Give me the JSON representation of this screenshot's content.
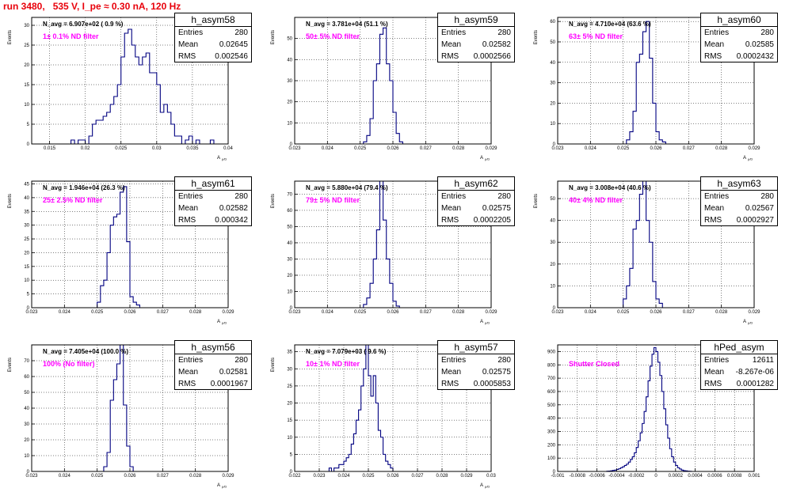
{
  "header": {
    "title": "run 3480,   535 V, I_pe ≈ 0.30 nA, 120 Hz"
  },
  "colors": {
    "hist": "#000080",
    "title": "#e8000b",
    "filter": "#ff00ff",
    "grid": "#000000"
  },
  "chart_data": [
    {
      "type": "bar",
      "name": "h_asym58",
      "navg": "N_avg = 6.907e+02 ( 0.9 %)",
      "filter": "1± 0.1% ND filter",
      "stats": [
        [
          "Entries",
          "280"
        ],
        [
          "Mean",
          "0.02645"
        ],
        [
          "RMS",
          "0.002546"
        ]
      ],
      "xlabel": "A",
      "xlabel_sub": "μ/D",
      "ylabel": "Events",
      "xlim": [
        0.0125,
        0.04
      ],
      "xticks": [
        0.015,
        0.02,
        0.025,
        0.03,
        0.035,
        0.04
      ],
      "xtick_labels": [
        "0.015",
        "0.02",
        "0.025",
        "0.03",
        "0.035",
        "0.04"
      ],
      "ylim": [
        0,
        32
      ],
      "yticks": [
        0,
        5,
        10,
        15,
        20,
        25,
        30
      ],
      "ytick_labels": [
        "0",
        "5",
        "10",
        "15",
        "20",
        "25",
        "30"
      ],
      "bin_start": 0.018,
      "bin_width": 0.0005,
      "values": [
        1,
        0,
        1,
        1,
        0,
        2,
        5,
        6,
        6,
        7,
        8,
        10,
        12,
        15,
        22,
        28,
        29,
        25,
        22,
        20,
        22,
        23,
        18,
        18,
        15,
        8,
        10,
        8,
        5,
        2,
        2,
        0,
        1,
        2,
        0,
        1,
        0,
        0,
        0,
        1
      ]
    },
    {
      "type": "bar",
      "name": "h_asym59",
      "navg": "N_avg = 3.781e+04 (51.1 %)",
      "filter": "50± 5% ND filter",
      "stats": [
        [
          "Entries",
          "280"
        ],
        [
          "Mean",
          "0.02582"
        ],
        [
          "RMS",
          "0.0002566"
        ]
      ],
      "xlabel": "A",
      "xlabel_sub": "μ/D",
      "ylabel": "Events",
      "xlim": [
        0.023,
        0.029
      ],
      "xticks": [
        0.023,
        0.024,
        0.025,
        0.026,
        0.027,
        0.028,
        0.029
      ],
      "xtick_labels": [
        "0.023",
        "0.024",
        "0.025",
        "0.026",
        "0.027",
        "0.028",
        "0.029"
      ],
      "ylim": [
        0,
        60
      ],
      "yticks": [
        0,
        10,
        20,
        30,
        40,
        50
      ],
      "ytick_labels": [
        "0",
        "10",
        "20",
        "30",
        "40",
        "50"
      ],
      "bin_start": 0.0251,
      "bin_width": 0.0001,
      "values": [
        1,
        4,
        12,
        30,
        38,
        52,
        55,
        38,
        30,
        15,
        5,
        1
      ]
    },
    {
      "type": "bar",
      "name": "h_asym60",
      "navg": "N_avg = 4.710e+04 (63.6 %)",
      "filter": "63± 5% ND filter",
      "stats": [
        [
          "Entries",
          "280"
        ],
        [
          "Mean",
          "0.02585"
        ],
        [
          "RMS",
          "0.0002432"
        ]
      ],
      "xlabel": "A",
      "xlabel_sub": "μ/D",
      "ylabel": "Events",
      "xlim": [
        0.023,
        0.029
      ],
      "xticks": [
        0.023,
        0.024,
        0.025,
        0.026,
        0.027,
        0.028,
        0.029
      ],
      "xtick_labels": [
        "0.023",
        "0.024",
        "0.025",
        "0.026",
        "0.027",
        "0.028",
        "0.029"
      ],
      "ylim": [
        0,
        62
      ],
      "yticks": [
        0,
        10,
        20,
        30,
        40,
        50,
        60
      ],
      "ytick_labels": [
        "0",
        "10",
        "20",
        "30",
        "40",
        "50",
        "60"
      ],
      "bin_start": 0.0251,
      "bin_width": 0.0001,
      "values": [
        2,
        6,
        16,
        40,
        44,
        55,
        60,
        42,
        20,
        6,
        2,
        1
      ]
    },
    {
      "type": "bar",
      "name": "h_asym61",
      "navg": "N_avg = 1.946e+04 (26.3 %)",
      "filter": "25± 2.5% ND filter",
      "stats": [
        [
          "Entries",
          "280"
        ],
        [
          "Mean",
          "0.02582"
        ],
        [
          "RMS",
          "0.000342"
        ]
      ],
      "xlabel": "A",
      "xlabel_sub": "μ/D",
      "ylabel": "Events",
      "xlim": [
        0.023,
        0.029
      ],
      "xticks": [
        0.023,
        0.024,
        0.025,
        0.026,
        0.027,
        0.028,
        0.029
      ],
      "xtick_labels": [
        "0.023",
        "0.024",
        "0.025",
        "0.026",
        "0.027",
        "0.028",
        "0.029"
      ],
      "ylim": [
        0,
        46
      ],
      "yticks": [
        0,
        5,
        10,
        15,
        20,
        25,
        30,
        35,
        40,
        45
      ],
      "ytick_labels": [
        "0",
        "5",
        "10",
        "15",
        "20",
        "25",
        "30",
        "35",
        "40",
        "45"
      ],
      "bin_start": 0.025,
      "bin_width": 0.0001,
      "values": [
        2,
        8,
        10,
        20,
        30,
        33,
        34,
        42,
        44,
        24,
        4,
        2,
        1
      ]
    },
    {
      "type": "bar",
      "name": "h_asym62",
      "navg": "N_avg = 5.880e+04 (79.4 %)",
      "filter": "79± 5% ND filter",
      "stats": [
        [
          "Entries",
          "280"
        ],
        [
          "Mean",
          "0.02575"
        ],
        [
          "RMS",
          "0.0002205"
        ]
      ],
      "xlabel": "A",
      "xlabel_sub": "μ/D",
      "ylabel": "Events",
      "xlim": [
        0.023,
        0.029
      ],
      "xticks": [
        0.023,
        0.024,
        0.025,
        0.026,
        0.027,
        0.028,
        0.029
      ],
      "xtick_labels": [
        "0.023",
        "0.024",
        "0.025",
        "0.026",
        "0.027",
        "0.028",
        "0.029"
      ],
      "ylim": [
        0,
        78
      ],
      "yticks": [
        0,
        10,
        20,
        30,
        40,
        50,
        60,
        70
      ],
      "ytick_labels": [
        "0",
        "10",
        "20",
        "30",
        "40",
        "50",
        "60",
        "70"
      ],
      "bin_start": 0.0251,
      "bin_width": 0.0001,
      "values": [
        2,
        6,
        15,
        30,
        48,
        78,
        54,
        30,
        15,
        4,
        1
      ]
    },
    {
      "type": "bar",
      "name": "h_asym63",
      "navg": "N_avg = 3.008e+04 (40.6 %)",
      "filter": "40± 4% ND filter",
      "stats": [
        [
          "Entries",
          "280"
        ],
        [
          "Mean",
          "0.02567"
        ],
        [
          "RMS",
          "0.0002927"
        ]
      ],
      "xlabel": "A",
      "xlabel_sub": "μ/D",
      "ylabel": "Events",
      "xlim": [
        0.023,
        0.029
      ],
      "xticks": [
        0.023,
        0.024,
        0.025,
        0.026,
        0.027,
        0.028,
        0.029
      ],
      "xtick_labels": [
        "0.023",
        "0.024",
        "0.025",
        "0.026",
        "0.027",
        "0.028",
        "0.029"
      ],
      "ylim": [
        0,
        58
      ],
      "yticks": [
        0,
        10,
        20,
        30,
        40,
        50
      ],
      "ytick_labels": [
        "0",
        "10",
        "20",
        "30",
        "40",
        "50"
      ],
      "bin_start": 0.025,
      "bin_width": 0.0001,
      "values": [
        4,
        10,
        18,
        36,
        40,
        52,
        58,
        40,
        30,
        12,
        4,
        2
      ]
    },
    {
      "type": "bar",
      "name": "h_asym56",
      "navg": "N_avg = 7.405e+04 (100.0 %)",
      "filter": "100% (No filter)",
      "stats": [
        [
          "Entries",
          "280"
        ],
        [
          "Mean",
          "0.02581"
        ],
        [
          "RMS",
          "0.0001967"
        ]
      ],
      "xlabel": "A",
      "xlabel_sub": "μ/D",
      "ylabel": "Events",
      "xlim": [
        0.023,
        0.029
      ],
      "xticks": [
        0.023,
        0.024,
        0.025,
        0.026,
        0.027,
        0.028,
        0.029
      ],
      "xtick_labels": [
        "0.023",
        "0.024",
        "0.025",
        "0.026",
        "0.027",
        "0.028",
        "0.029"
      ],
      "ylim": [
        0,
        80
      ],
      "yticks": [
        0,
        10,
        20,
        30,
        40,
        50,
        60,
        70
      ],
      "ytick_labels": [
        "0",
        "10",
        "20",
        "30",
        "40",
        "50",
        "60",
        "70"
      ],
      "bin_start": 0.0252,
      "bin_width": 0.0001,
      "values": [
        3,
        12,
        45,
        58,
        68,
        80,
        42,
        16,
        3
      ]
    },
    {
      "type": "bar",
      "name": "h_asym57",
      "navg": "N_avg = 7.079e+03 ( 9.6 %)",
      "filter": "10± 1% ND filter",
      "stats": [
        [
          "Entries",
          "280"
        ],
        [
          "Mean",
          "0.02575"
        ],
        [
          "RMS",
          "0.0005853"
        ]
      ],
      "xlabel": "A",
      "xlabel_sub": "μ/D",
      "ylabel": "Events",
      "xlim": [
        0.022,
        0.03
      ],
      "xticks": [
        0.022,
        0.023,
        0.024,
        0.025,
        0.026,
        0.027,
        0.028,
        0.029,
        0.03
      ],
      "xtick_labels": [
        "0.022",
        "0.023",
        "0.024",
        "0.025",
        "0.026",
        "0.027",
        "0.028",
        "0.029",
        "0.03"
      ],
      "ylim": [
        0,
        37
      ],
      "yticks": [
        0,
        5,
        10,
        15,
        20,
        25,
        30,
        35
      ],
      "ytick_labels": [
        "0",
        "5",
        "10",
        "15",
        "20",
        "25",
        "30",
        "35"
      ],
      "bin_start": 0.0234,
      "bin_width": 0.0001,
      "values": [
        1,
        0,
        1,
        1,
        2,
        2,
        3,
        4,
        5,
        8,
        11,
        15,
        18,
        25,
        30,
        37,
        28,
        22,
        28,
        20,
        12,
        10,
        5,
        3,
        2,
        1
      ]
    },
    {
      "type": "bar",
      "name": "hPed_asym",
      "navg": "",
      "filter": "Shutter Closed",
      "stats": [
        [
          "Entries",
          "12611"
        ],
        [
          "Mean",
          "-8.267e-06"
        ],
        [
          "RMS",
          "0.0001282"
        ]
      ],
      "xlabel": "",
      "xlabel_sub": "",
      "ylabel": "",
      "xlim": [
        -0.001,
        0.001
      ],
      "xticks": [
        -0.001,
        -0.0008,
        -0.0006,
        -0.0004,
        -0.0002,
        0,
        0.0002,
        0.0004,
        0.0006,
        0.0008,
        0.001
      ],
      "xtick_labels": [
        "-0.001",
        "-0.0008",
        "-0.0006",
        "-0.0004",
        "-0.0002",
        "0",
        "0.0002",
        "0.0004",
        "0.0006",
        "0.0008",
        "0.001"
      ],
      "ylim": [
        0,
        950
      ],
      "yticks": [
        0,
        100,
        200,
        300,
        400,
        500,
        600,
        700,
        800,
        900
      ],
      "ytick_labels": [
        "0",
        "100",
        "200",
        "300",
        "400",
        "500",
        "600",
        "700",
        "800",
        "900"
      ],
      "bin_start": -0.0005,
      "bin_width": 2e-05,
      "values": [
        2,
        3,
        5,
        8,
        10,
        15,
        20,
        28,
        35,
        45,
        55,
        70,
        90,
        110,
        140,
        180,
        230,
        290,
        360,
        450,
        560,
        680,
        790,
        880,
        930,
        900,
        820,
        720,
        600,
        470,
        350,
        250,
        170,
        110,
        70,
        45,
        28,
        18,
        10,
        6,
        4,
        2,
        1
      ]
    }
  ]
}
